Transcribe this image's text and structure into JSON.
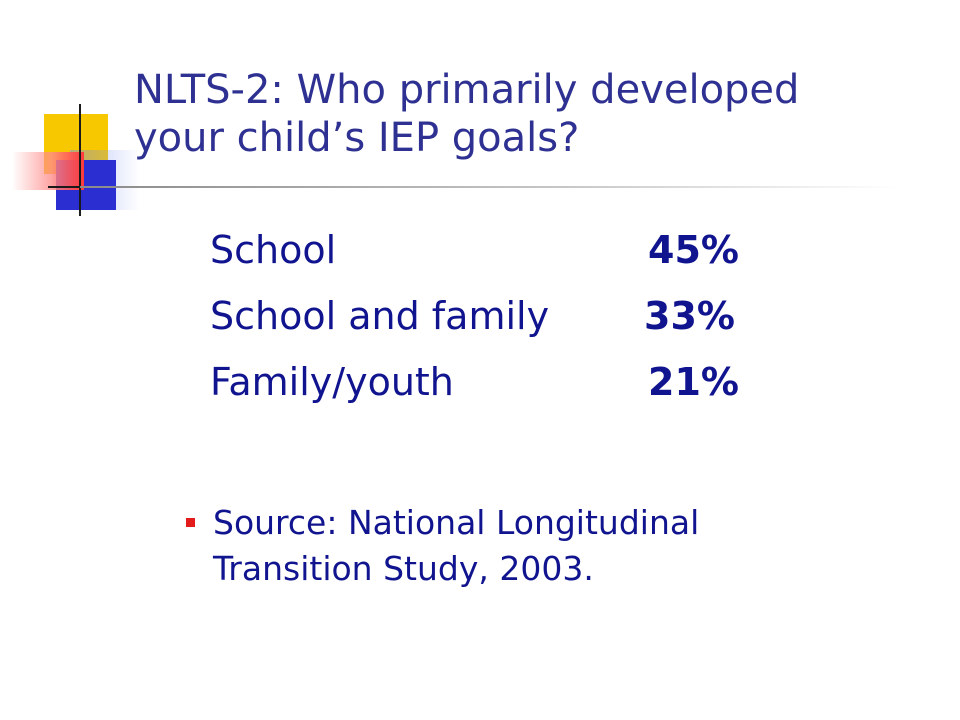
{
  "slide": {
    "title_line1": "NLTS-2: Who primarily developed",
    "title_line2": "your child’s IEP goals?",
    "stats": [
      {
        "label": "School",
        "value": "45%"
      },
      {
        "label": "School and family",
        "value": "33%"
      },
      {
        "label": "Family/youth",
        "value": "21%"
      }
    ],
    "source_line1": "Source: National Longitudinal",
    "source_line2": "Transition Study, 2003."
  },
  "colors": {
    "title": "#2e3192",
    "body_text": "#11148f",
    "bullet": "#e31b1b",
    "deco_yellow": "#f7c800",
    "deco_blue": "#2b2fd2",
    "deco_red": "#ff3a3a"
  }
}
